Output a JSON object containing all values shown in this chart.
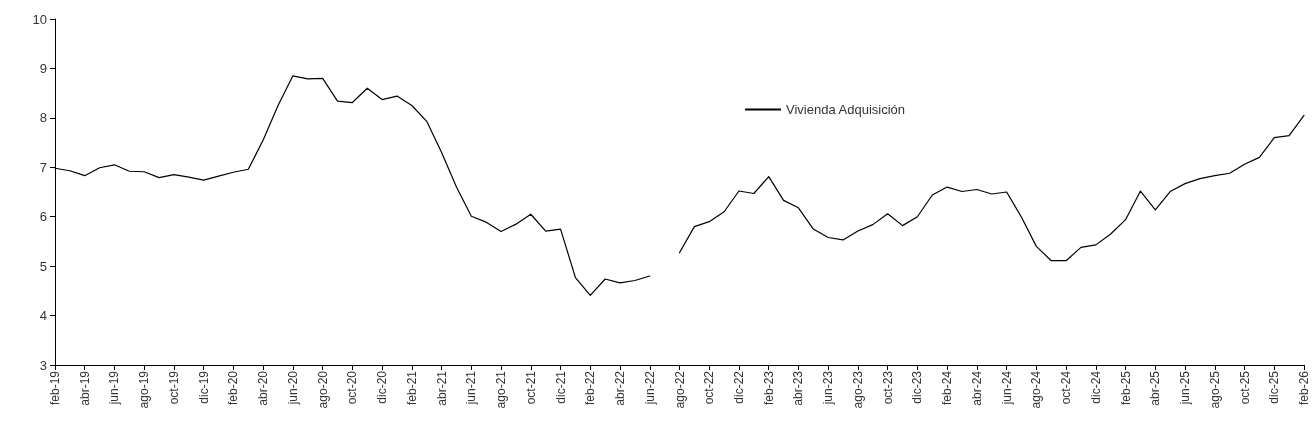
{
  "chart_data": {
    "type": "line",
    "categories": [
      "feb-19",
      null,
      "abr-19",
      null,
      "jun-19",
      null,
      "ago-19",
      null,
      "oct-19",
      null,
      "dic-19",
      null,
      "feb-20",
      null,
      "abr-20",
      null,
      "jun-20",
      null,
      "ago-20",
      null,
      "oct-20",
      null,
      "dic-20",
      null,
      "feb-21",
      null,
      "abr-21",
      null,
      "jun-21",
      null,
      "ago-21",
      null,
      "oct-21",
      null,
      "dic-21",
      null,
      "feb-22",
      null,
      "abr-22",
      null,
      "jun-22",
      null,
      "ago-22",
      null,
      "oct-22",
      null,
      "dic-22",
      null,
      "feb-23",
      null,
      "abr-23",
      null,
      "jun-23",
      null,
      "ago-23",
      null,
      "oct-23",
      null,
      "dic-23",
      null,
      "feb-24",
      null,
      "abr-24",
      null,
      "jun-24",
      null,
      "ago-24",
      null,
      "oct-24",
      null,
      "dic-24",
      null,
      "feb-25",
      null,
      "abr-25",
      null,
      "jun-25",
      null,
      "ago-25",
      null,
      "oct-25",
      null,
      "dic-25",
      null,
      "feb-26"
    ],
    "series": [
      {
        "name": "Vivienda Adquisición",
        "color": "#000000",
        "values": [
          6.98,
          6.93,
          6.83,
          6.99,
          7.05,
          6.92,
          6.91,
          6.79,
          6.85,
          6.8,
          6.74,
          6.82,
          6.9,
          6.96,
          7.55,
          8.25,
          8.85,
          8.79,
          8.8,
          8.34,
          8.31,
          8.6,
          8.37,
          8.44,
          8.25,
          7.93,
          7.3,
          6.6,
          6.01,
          5.89,
          5.7,
          5.85,
          6.05,
          5.71,
          5.75,
          4.77,
          4.41,
          4.74,
          4.66,
          4.71,
          4.8,
          null,
          5.27,
          5.8,
          5.9,
          6.1,
          6.52,
          6.47,
          6.81,
          6.33,
          6.18,
          5.75,
          5.58,
          5.53,
          5.71,
          5.84,
          6.06,
          5.82,
          6.0,
          6.44,
          6.6,
          6.51,
          6.55,
          6.46,
          6.5,
          5.99,
          5.4,
          5.11,
          5.11,
          5.38,
          5.43,
          5.65,
          5.94,
          6.52,
          6.14,
          6.51,
          6.67,
          6.77,
          6.83,
          6.88,
          7.06,
          7.2,
          7.6,
          7.64,
          8.05
        ]
      }
    ],
    "ylim": [
      3,
      10
    ],
    "yticks": [
      3,
      4,
      5,
      6,
      7,
      8,
      9,
      10
    ],
    "grid": false,
    "legend": "top right",
    "marker": "none",
    "line_style": "solid"
  }
}
